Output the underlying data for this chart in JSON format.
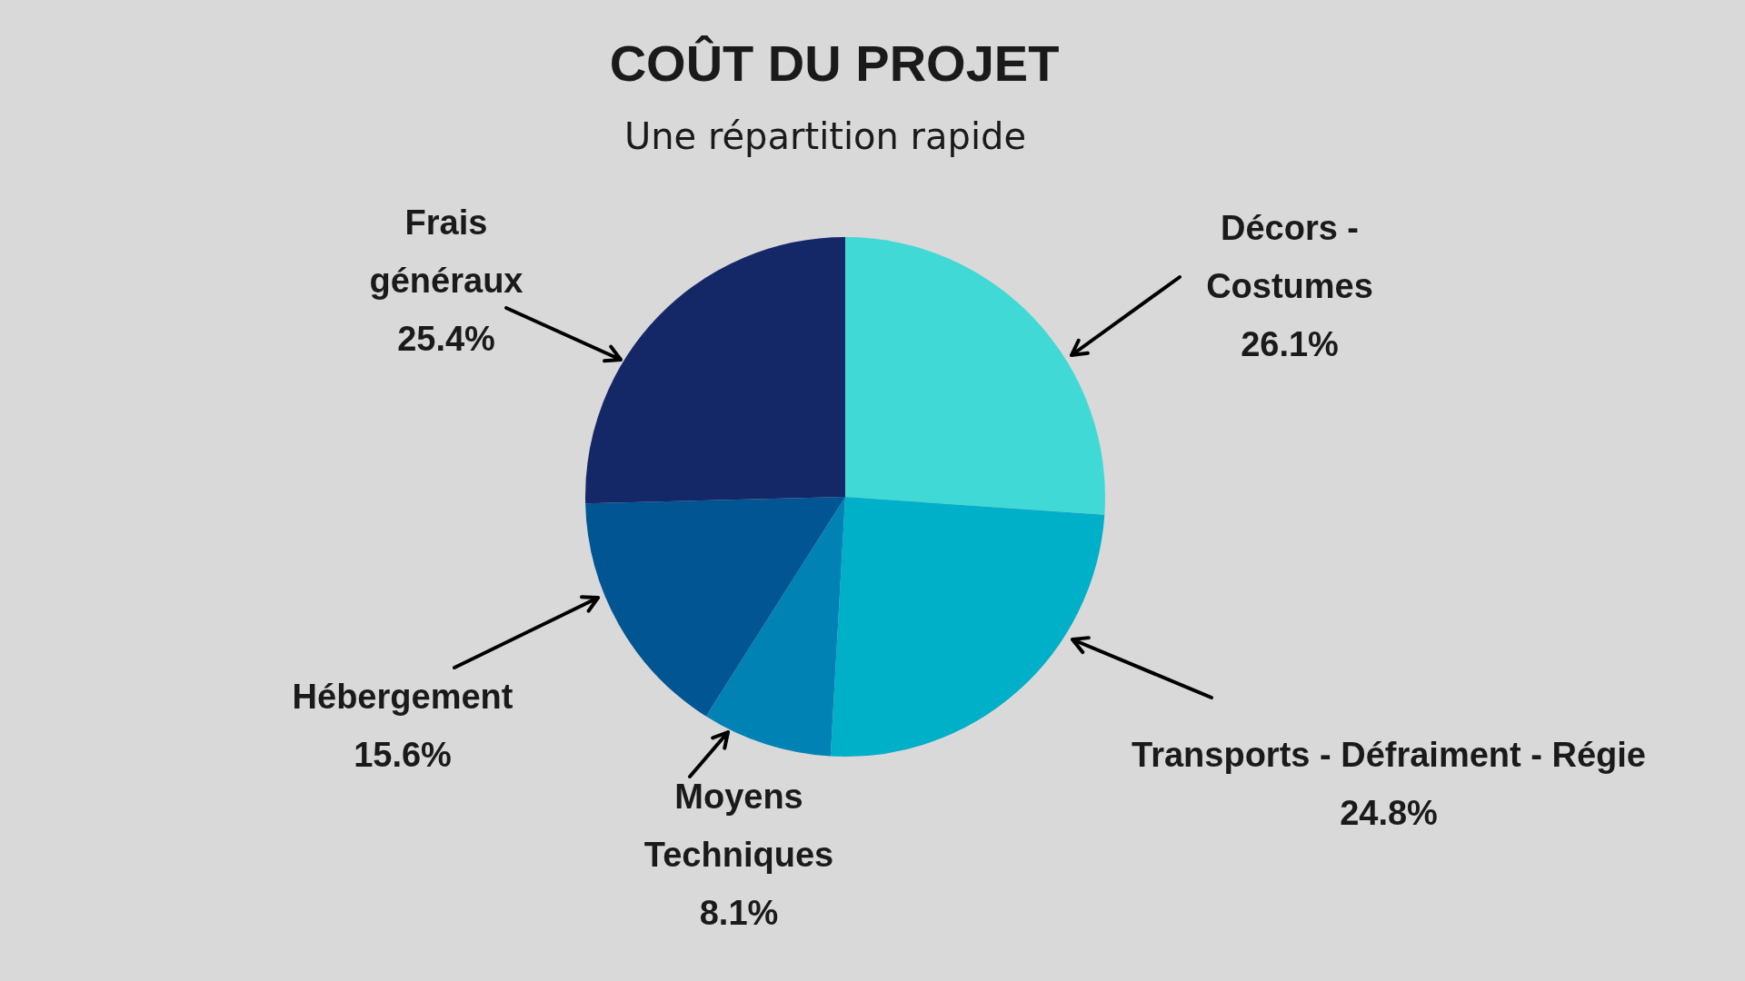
{
  "chart_data": {
    "type": "pie",
    "title": "COÛT DU PROJET",
    "subtitle": "Une répartition rapide",
    "categories": [
      "Décors - Costumes",
      "Transports - Défraiment - Régie",
      "Moyens Techniques",
      "Hébergement",
      "Frais généraux"
    ],
    "values": [
      26.1,
      24.8,
      8.1,
      15.6,
      25.4
    ],
    "colors": [
      "#40d9d6",
      "#00afc8",
      "#0082b4",
      "#005592",
      "#142868"
    ],
    "value_labels": [
      "26.1%",
      "24.8%",
      "8.1%",
      "15.6%",
      "25.4%"
    ],
    "legend": false
  }
}
